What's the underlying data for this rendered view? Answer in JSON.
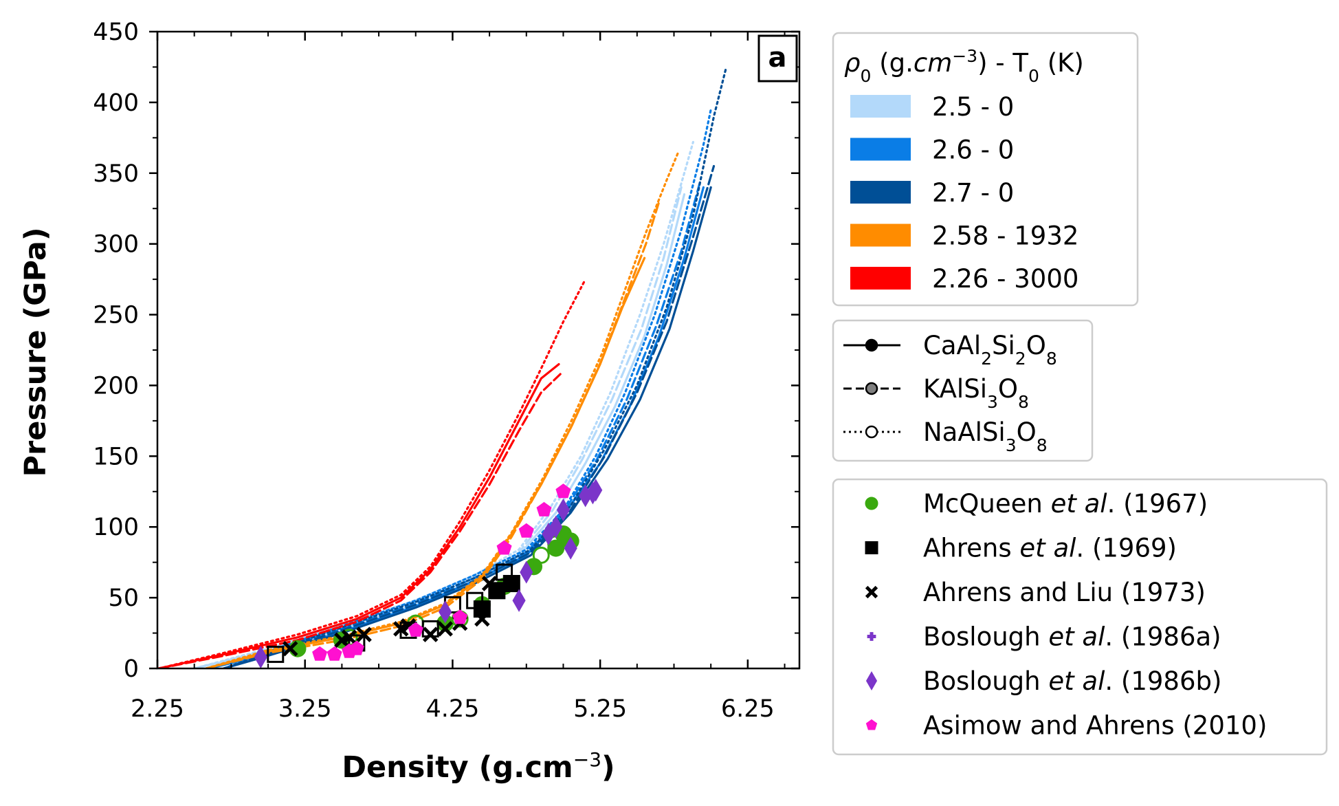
{
  "chart_data": {
    "type": "line",
    "panel_label": "a",
    "xlabel": "Density (g.cm",
    "xlabel_exp": "−3",
    "xlabel_close": ")",
    "ylabel": "Pressure (GPa)",
    "xlim": [
      2.25,
      6.6
    ],
    "ylim": [
      0,
      450
    ],
    "xticks": [
      "2.25",
      "3.25",
      "4.25",
      "5.25",
      "6.25"
    ],
    "yticks": [
      "0",
      "50",
      "100",
      "150",
      "200",
      "250",
      "300",
      "350",
      "400",
      "450"
    ],
    "xtick_values": [
      2.25,
      3.25,
      4.25,
      5.25,
      6.25
    ],
    "ytick_values": [
      0,
      50,
      100,
      150,
      200,
      250,
      300,
      350,
      400,
      450
    ],
    "legend_model": {
      "title_rho": "ρ",
      "title_sub0": "0",
      "title_units": " (g.",
      "title_cm": "cm",
      "title_exp": "−3",
      "title_rest": ") - T",
      "title_sub0b": "0",
      "title_k": " (K)",
      "entries": [
        {
          "label": "2.5  -  0",
          "color": "#b3d9fa"
        },
        {
          "label": "2.6  -  0",
          "color": "#0a7de6"
        },
        {
          "label": "2.7  -  0",
          "color": "#004f96"
        },
        {
          "label": "2.58  -  1932",
          "color": "#ff8c00"
        },
        {
          "label": "2.26  -  3000",
          "color": "#ff0000"
        }
      ]
    },
    "legend_composition": {
      "entries": [
        {
          "style": "solid",
          "marker_fill": "#000000",
          "parts": [
            [
              "CaAl",
              "n"
            ],
            [
              "2",
              "s"
            ],
            [
              "Si",
              "n"
            ],
            [
              "2",
              "s"
            ],
            [
              "O",
              "n"
            ],
            [
              "8",
              "s"
            ]
          ]
        },
        {
          "style": "dashed",
          "marker_fill": "#808080",
          "parts": [
            [
              "KAlSi",
              "n"
            ],
            [
              "3",
              "s"
            ],
            [
              "O",
              "n"
            ],
            [
              "8",
              "s"
            ]
          ]
        },
        {
          "style": "dotted",
          "marker_fill": "#ffffff",
          "parts": [
            [
              "NaAlSi",
              "n"
            ],
            [
              "3",
              "s"
            ],
            [
              "O",
              "n"
            ],
            [
              "8",
              "s"
            ]
          ]
        }
      ]
    },
    "legend_experiments": {
      "entries": [
        {
          "marker": "circle",
          "color": "#3aa90f",
          "parts": [
            [
              "McQueen ",
              "n"
            ],
            [
              "et al",
              "i"
            ],
            [
              ".  (1967)",
              "n"
            ]
          ]
        },
        {
          "marker": "square",
          "color": "#000000",
          "parts": [
            [
              "Ahrens ",
              "n"
            ],
            [
              "et al",
              "i"
            ],
            [
              ".  (1969)",
              "n"
            ]
          ]
        },
        {
          "marker": "x",
          "color": "#000000",
          "parts": [
            [
              "Ahrens and Liu (1973)",
              "n"
            ]
          ]
        },
        {
          "marker": "plus",
          "color": "#7b35c9",
          "parts": [
            [
              "Boslough ",
              "n"
            ],
            [
              "et al",
              "i"
            ],
            [
              ".  (1986a)",
              "n"
            ]
          ]
        },
        {
          "marker": "diamond",
          "color": "#7b35c9",
          "parts": [
            [
              "Boslough ",
              "n"
            ],
            [
              "et al",
              "i"
            ],
            [
              ".  (1986b)",
              "n"
            ]
          ]
        },
        {
          "marker": "pentagon",
          "color": "#ff10d0",
          "parts": [
            [
              "Asimow and Ahrens (2010)",
              "n"
            ]
          ]
        }
      ]
    },
    "series": [
      {
        "name": "2.5 - 0 CaAl2Si2O8",
        "color": "#b3d9fa",
        "style": "solid",
        "x": [
          2.5,
          3.0,
          3.5,
          4.0,
          4.4,
          4.7,
          4.95,
          5.15,
          5.35,
          5.55,
          5.7,
          5.82
        ],
        "y": [
          0,
          12,
          28,
          45,
          62,
          80,
          110,
          145,
          185,
          235,
          285,
          335
        ]
      },
      {
        "name": "2.5 - 0 KAlSi3O8",
        "color": "#b3d9fa",
        "style": "dashed",
        "x": [
          2.5,
          3.0,
          3.5,
          4.0,
          4.4,
          4.7,
          4.93,
          5.13,
          5.33,
          5.53,
          5.68,
          5.8
        ],
        "y": [
          0,
          13,
          30,
          47,
          64,
          82,
          112,
          148,
          190,
          240,
          290,
          340
        ]
      },
      {
        "name": "2.5 - 0 NaAlSi3O8",
        "color": "#b3d9fa",
        "style": "dotted",
        "x": [
          2.5,
          3.0,
          3.5,
          4.0,
          4.4,
          4.7,
          4.92,
          5.12,
          5.32,
          5.52,
          5.68,
          5.82,
          5.88
        ],
        "y": [
          0,
          14,
          31,
          48,
          66,
          84,
          115,
          150,
          195,
          250,
          300,
          350,
          372
        ]
      },
      {
        "name": "2.6 - 0 CaAl2Si2O8",
        "color": "#0a7de6",
        "style": "solid",
        "x": [
          2.6,
          3.0,
          3.5,
          4.0,
          4.4,
          4.75,
          5.0,
          5.25,
          5.45,
          5.65,
          5.82,
          5.95
        ],
        "y": [
          0,
          10,
          26,
          44,
          62,
          80,
          108,
          145,
          185,
          235,
          290,
          340
        ]
      },
      {
        "name": "2.6 - 0 KAlSi3O8",
        "color": "#0a7de6",
        "style": "dashed",
        "x": [
          2.6,
          3.0,
          3.5,
          4.0,
          4.4,
          4.75,
          5.0,
          5.23,
          5.43,
          5.63,
          5.8,
          5.93
        ],
        "y": [
          0,
          11,
          28,
          46,
          64,
          82,
          110,
          148,
          190,
          242,
          295,
          345
        ]
      },
      {
        "name": "2.6 - 0 NaAlSi3O8",
        "color": "#0a7de6",
        "style": "dotted",
        "x": [
          2.6,
          3.0,
          3.5,
          4.0,
          4.4,
          4.75,
          5.0,
          5.22,
          5.42,
          5.62,
          5.8,
          5.95,
          6.0
        ],
        "y": [
          0,
          12,
          30,
          48,
          66,
          84,
          112,
          150,
          195,
          250,
          310,
          370,
          395
        ]
      },
      {
        "name": "2.7 - 0 CaAl2Si2O8",
        "color": "#004f96",
        "style": "solid",
        "x": [
          2.7,
          3.0,
          3.5,
          4.0,
          4.4,
          4.78,
          5.05,
          5.3,
          5.52,
          5.72,
          5.88,
          6.0
        ],
        "y": [
          0,
          9,
          25,
          43,
          60,
          80,
          110,
          148,
          190,
          240,
          295,
          340
        ]
      },
      {
        "name": "2.7 - 0 KAlSi3O8",
        "color": "#004f96",
        "style": "dashed",
        "x": [
          2.7,
          3.0,
          3.5,
          4.0,
          4.4,
          4.78,
          5.05,
          5.28,
          5.5,
          5.7,
          5.88,
          6.02
        ],
        "y": [
          0,
          10,
          27,
          45,
          62,
          82,
          112,
          150,
          195,
          245,
          305,
          355
        ]
      },
      {
        "name": "2.7 - 0 NaAlSi3O8",
        "color": "#004f96",
        "style": "dotted",
        "x": [
          2.7,
          3.0,
          3.5,
          4.0,
          4.4,
          4.78,
          5.05,
          5.28,
          5.5,
          5.7,
          5.88,
          6.02,
          6.1
        ],
        "y": [
          0,
          11,
          29,
          47,
          64,
          84,
          115,
          155,
          200,
          255,
          320,
          390,
          423
        ]
      },
      {
        "name": "2.58 - 1932 CaAl2Si2O8",
        "color": "#ff8c00",
        "style": "solid",
        "x": [
          2.58,
          3.0,
          3.5,
          3.9,
          4.2,
          4.45,
          4.65,
          4.85,
          5.05,
          5.25,
          5.4,
          5.55
        ],
        "y": [
          0,
          12,
          22,
          32,
          45,
          65,
          95,
          130,
          170,
          215,
          255,
          290
        ]
      },
      {
        "name": "2.58 - 1932 KAlSi3O8",
        "color": "#ff8c00",
        "style": "dashed",
        "x": [
          2.58,
          3.0,
          3.5,
          3.9,
          4.2,
          4.45,
          4.65,
          4.86,
          5.06,
          5.26,
          5.42,
          5.56,
          5.65
        ],
        "y": [
          0,
          11,
          20,
          30,
          43,
          63,
          93,
          132,
          172,
          218,
          262,
          300,
          330
        ]
      },
      {
        "name": "2.58 - 1932 NaAlSi3O8",
        "color": "#ff8c00",
        "style": "dotted",
        "x": [
          2.58,
          3.0,
          3.5,
          3.9,
          4.2,
          4.45,
          4.65,
          4.86,
          5.06,
          5.26,
          5.42,
          5.56,
          5.7,
          5.78
        ],
        "y": [
          0,
          13,
          23,
          33,
          46,
          66,
          96,
          134,
          176,
          222,
          268,
          308,
          345,
          365
        ]
      },
      {
        "name": "2.26 - 3000 CaAl2Si2O8",
        "color": "#ff0000",
        "style": "solid",
        "x": [
          2.26,
          2.7,
          3.2,
          3.6,
          3.9,
          4.1,
          4.3,
          4.5,
          4.7,
          4.85,
          4.97
        ],
        "y": [
          0,
          10,
          22,
          35,
          50,
          70,
          100,
          135,
          175,
          205,
          215
        ]
      },
      {
        "name": "2.26 - 3000 KAlSi3O8",
        "color": "#ff0000",
        "style": "dashed",
        "x": [
          2.26,
          2.7,
          3.2,
          3.6,
          3.9,
          4.1,
          4.3,
          4.5,
          4.7,
          4.85,
          4.98
        ],
        "y": [
          0,
          9,
          20,
          33,
          48,
          68,
          97,
          130,
          168,
          195,
          208
        ]
      },
      {
        "name": "2.26 - 3000 NaAlSi3O8",
        "color": "#ff0000",
        "style": "dotted",
        "x": [
          2.26,
          2.7,
          3.2,
          3.6,
          3.9,
          4.1,
          4.3,
          4.5,
          4.7,
          4.85,
          5.0,
          5.15
        ],
        "y": [
          0,
          11,
          24,
          37,
          52,
          72,
          104,
          140,
          180,
          212,
          245,
          275
        ]
      }
    ],
    "points": [
      {
        "source": "McQueen et al. (1967)",
        "marker": "circle",
        "color": "#3aa90f",
        "fill": "filled",
        "x": [
          3.2,
          3.5,
          4.2,
          4.45,
          4.6,
          4.8,
          4.95,
          5.0,
          5.05
        ],
        "y": [
          14,
          20,
          32,
          45,
          58,
          72,
          85,
          95,
          90
        ]
      },
      {
        "source": "McQueen et al. (1967)",
        "marker": "circle",
        "color": "#3aa90f",
        "fill": "open",
        "x": [
          3.55,
          4.0,
          4.3,
          4.85,
          4.95
        ],
        "y": [
          22,
          32,
          35,
          80,
          88
        ]
      },
      {
        "source": "Ahrens et al. (1969)",
        "marker": "square",
        "color": "#000000",
        "fill": "filled",
        "x": [
          4.45,
          4.55,
          4.65
        ],
        "y": [
          42,
          55,
          60
        ]
      },
      {
        "source": "Ahrens et al. (1969)",
        "marker": "square",
        "color": "#000000",
        "fill": "open",
        "x": [
          3.05,
          3.6,
          3.95,
          4.1,
          4.25,
          4.4,
          4.6
        ],
        "y": [
          10,
          18,
          27,
          28,
          45,
          48,
          68
        ]
      },
      {
        "source": "Ahrens and Liu (1973)",
        "marker": "x",
        "color": "#000000",
        "x": [
          3.15,
          3.5,
          3.55,
          3.65,
          3.9,
          3.95,
          4.1,
          4.2,
          4.3,
          4.45,
          4.5
        ],
        "y": [
          14,
          20,
          22,
          24,
          28,
          30,
          24,
          28,
          32,
          35,
          60
        ]
      },
      {
        "source": "Boslough et al. (1986b)",
        "marker": "diamond",
        "color": "#7b35c9",
        "x": [
          2.95,
          4.2,
          4.7,
          4.75,
          4.9,
          4.95,
          5.0,
          5.05,
          5.15,
          5.2,
          5.22
        ],
        "y": [
          8,
          40,
          48,
          68,
          95,
          100,
          112,
          85,
          122,
          124,
          126
        ]
      },
      {
        "source": "Asimow and Ahrens (2010)",
        "marker": "pentagon",
        "color": "#ff10d0",
        "x": [
          3.35,
          3.45,
          3.55,
          3.6,
          4.0,
          4.3,
          4.6,
          4.75,
          4.87,
          5.0
        ],
        "y": [
          10,
          10,
          12,
          14,
          27,
          36,
          85,
          97,
          112,
          125
        ]
      }
    ]
  }
}
